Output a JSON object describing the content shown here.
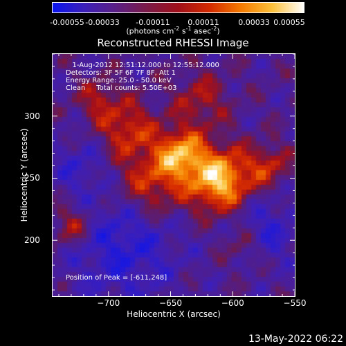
{
  "colorbar": {
    "ticks": [
      "-0.00055",
      "-0.00033",
      "-0.00011",
      "0.00011",
      "0.00033",
      "0.00055"
    ],
    "units_prefix": "(photons cm",
    "units_sup1": "-2",
    "units_mid1": " s",
    "units_sup2": "-1",
    "units_mid2": " asec",
    "units_sup3": "-2",
    "units_suffix": ")",
    "colors": [
      "#0a14f0",
      "#3b1fb8",
      "#5a1f86",
      "#7a1a48",
      "#a0101a",
      "#d42a00",
      "#f47a00",
      "#fcc03a",
      "#ffffff"
    ]
  },
  "chart_data": {
    "type": "heatmap",
    "title": "Reconstructed RHESSI Image",
    "xlabel": "Heliocentric X (arcsec)",
    "ylabel": "Heliocentric Y (arcsec)",
    "xlim": [
      -745,
      -550
    ],
    "ylim": [
      155,
      350
    ],
    "x_ticks": [
      -700,
      -650,
      -600,
      -550
    ],
    "x_tick_labels": [
      "−700",
      "−650",
      "−600",
      "−550"
    ],
    "y_ticks": [
      200,
      250,
      300
    ],
    "y_tick_labels": [
      "200",
      "250",
      "300"
    ],
    "peak": [
      -611,
      248
    ],
    "value_range": [
      -0.00055,
      0.00055
    ],
    "annotations": {
      "line1": "   1-Aug-2012 12:51:12.000 to 12:55:12.000",
      "line2": "Detectors: 3F 5F 6F 7F 8F, Att 1",
      "line3": "Energy Range: 25.0 - 50.0 keV",
      "line4": "Clean     Total counts: 5.50E+03",
      "peak_text": "Position of Peak = [-611,248]"
    }
  },
  "footer": {
    "timestamp": "13-May-2022 06:22"
  }
}
